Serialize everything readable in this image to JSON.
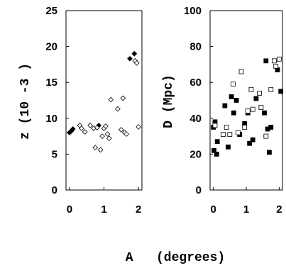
{
  "chart_data": [
    {
      "type": "scatter",
      "ylabel": "z (10 -3 )",
      "ylim": [
        0,
        25
      ],
      "yticks": [
        "0",
        "5",
        "10",
        "15",
        "20",
        "25"
      ],
      "xlim": [
        -0.1,
        2.1
      ],
      "xticks": [
        "0",
        "1",
        "2"
      ],
      "series": [
        {
          "marker": "filled-diamond",
          "points": [
            [
              0.0,
              8.0
            ],
            [
              0.05,
              8.2
            ],
            [
              0.1,
              8.5
            ],
            [
              0.85,
              9.0
            ],
            [
              1.75,
              18.3
            ],
            [
              1.88,
              19.0
            ]
          ]
        },
        {
          "marker": "open-diamond",
          "points": [
            [
              0.3,
              9.0
            ],
            [
              0.35,
              8.6
            ],
            [
              0.45,
              8.1
            ],
            [
              0.6,
              9.0
            ],
            [
              0.7,
              8.6
            ],
            [
              0.75,
              5.9
            ],
            [
              0.8,
              8.7
            ],
            [
              0.9,
              5.6
            ],
            [
              0.95,
              7.5
            ],
            [
              1.0,
              8.6
            ],
            [
              1.05,
              8.9
            ],
            [
              1.1,
              7.8
            ],
            [
              1.15,
              7.2
            ],
            [
              1.2,
              12.6
            ],
            [
              1.4,
              11.3
            ],
            [
              1.5,
              8.4
            ],
            [
              1.55,
              12.8
            ],
            [
              1.6,
              8.0
            ],
            [
              1.65,
              7.8
            ],
            [
              1.9,
              18.0
            ],
            [
              1.95,
              17.7
            ],
            [
              2.0,
              8.8
            ]
          ]
        }
      ]
    },
    {
      "type": "scatter",
      "ylabel": "D (Mpc)",
      "ylim": [
        0,
        100
      ],
      "yticks": [
        "0",
        "20",
        "40",
        "60",
        "80",
        "100"
      ],
      "xlim": [
        -0.1,
        2.1
      ],
      "xticks": [
        "0",
        "1",
        "2"
      ],
      "series": [
        {
          "marker": "filled-square",
          "points": [
            [
              0.0,
              35
            ],
            [
              0.02,
              22
            ],
            [
              0.05,
              38
            ],
            [
              0.1,
              20
            ],
            [
              0.12,
              27
            ],
            [
              0.35,
              47
            ],
            [
              0.45,
              24
            ],
            [
              0.55,
              52
            ],
            [
              0.62,
              43
            ],
            [
              0.7,
              50
            ],
            [
              0.8,
              31
            ],
            [
              0.95,
              37
            ],
            [
              1.05,
              43
            ],
            [
              1.1,
              26
            ],
            [
              1.2,
              28
            ],
            [
              1.3,
              51
            ],
            [
              1.55,
              43
            ],
            [
              1.6,
              72
            ],
            [
              1.65,
              34
            ],
            [
              1.7,
              21
            ],
            [
              1.75,
              35
            ],
            [
              1.95,
              67
            ],
            [
              2.05,
              55
            ]
          ]
        },
        {
          "marker": "open-square",
          "points": [
            [
              0.05,
              36
            ],
            [
              0.3,
              31
            ],
            [
              0.4,
              35
            ],
            [
              0.5,
              31
            ],
            [
              0.6,
              59
            ],
            [
              0.75,
              32
            ],
            [
              0.85,
              66
            ],
            [
              0.95,
              35
            ],
            [
              1.05,
              44
            ],
            [
              1.15,
              56
            ],
            [
              1.2,
              45
            ],
            [
              1.4,
              54
            ],
            [
              1.45,
              46
            ],
            [
              1.6,
              30
            ],
            [
              1.75,
              56
            ],
            [
              1.85,
              72
            ],
            [
              1.9,
              69
            ],
            [
              2.0,
              73
            ]
          ]
        }
      ]
    }
  ],
  "shared_xlabel": "A   (degrees)"
}
